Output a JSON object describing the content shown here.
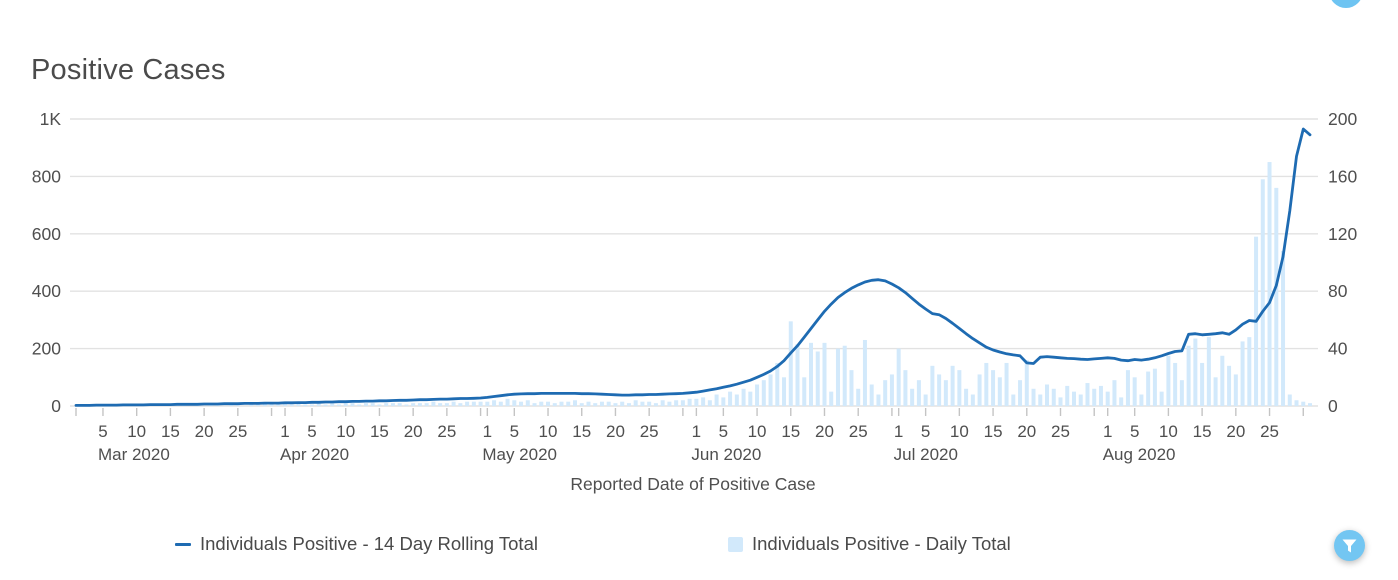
{
  "title": "Positive Cases",
  "filter_button": {
    "color": "#73c6f2",
    "icon": "filter-funnel"
  },
  "top_partial_button": {
    "color": "#6ec4f2"
  },
  "legend": [
    {
      "label": "Individuals Positive - 14 Day Rolling Total",
      "marker": "line"
    },
    {
      "label": "Individuals Positive - Daily Total",
      "marker": "square"
    }
  ],
  "chart_data": {
    "type": "line+bar",
    "title": "Positive Cases",
    "xlabel": "Reported Date of Positive Case",
    "start_date": "2020-03-01",
    "grid": true,
    "legend_position": "bottom",
    "months": [
      {
        "label": "Mar 2020",
        "days": 31,
        "tick_label_days": [
          5,
          10,
          15,
          20,
          25
        ]
      },
      {
        "label": "Apr 2020",
        "days": 30,
        "tick_label_days": [
          1,
          5,
          10,
          15,
          20,
          25
        ]
      },
      {
        "label": "May 2020",
        "days": 31,
        "tick_label_days": [
          1,
          5,
          10,
          15,
          20,
          25
        ]
      },
      {
        "label": "Jun 2020",
        "days": 30,
        "tick_label_days": [
          1,
          5,
          10,
          15,
          20,
          25
        ]
      },
      {
        "label": "Jul 2020",
        "days": 31,
        "tick_label_days": [
          1,
          5,
          10,
          15,
          20,
          25
        ]
      },
      {
        "label": "Aug 2020",
        "days": 31,
        "tick_label_days": [
          1,
          5,
          10,
          15,
          20,
          25
        ]
      }
    ],
    "left_axis": {
      "min": 0,
      "max": 1000,
      "tick_labels": [
        "0",
        "200",
        "400",
        "600",
        "800",
        "1K"
      ]
    },
    "right_axis": {
      "min": 0,
      "max": 200,
      "tick_labels": [
        "0",
        "40",
        "80",
        "120",
        "160",
        "200"
      ]
    },
    "colors": {
      "gridline": "#e2e2e2",
      "tick": "#c4c4c4",
      "axis_text": "#4f4f4f"
    },
    "series": [
      {
        "name": "Individuals Positive - 14 Day Rolling Total",
        "type": "line",
        "axis": "left",
        "color": "#1e6bb2",
        "values": [
          2,
          2,
          2,
          3,
          3,
          3,
          3,
          4,
          4,
          4,
          4,
          5,
          5,
          5,
          5,
          6,
          6,
          6,
          6,
          7,
          7,
          7,
          8,
          8,
          8,
          9,
          9,
          9,
          10,
          10,
          10,
          11,
          11,
          12,
          12,
          13,
          13,
          14,
          14,
          15,
          15,
          16,
          16,
          17,
          17,
          18,
          18,
          19,
          20,
          20,
          21,
          22,
          22,
          23,
          24,
          24,
          25,
          26,
          26,
          27,
          28,
          30,
          33,
          36,
          39,
          41,
          42,
          43,
          43,
          44,
          44,
          44,
          44,
          44,
          44,
          43,
          43,
          42,
          41,
          40,
          39,
          38,
          38,
          39,
          39,
          40,
          40,
          41,
          42,
          43,
          44,
          46,
          48,
          52,
          56,
          60,
          65,
          70,
          76,
          83,
          90,
          100,
          110,
          122,
          138,
          158,
          185,
          210,
          240,
          270,
          300,
          330,
          355,
          378,
          395,
          410,
          422,
          432,
          438,
          440,
          436,
          425,
          412,
          395,
          375,
          355,
          338,
          322,
          318,
          305,
          288,
          270,
          252,
          235,
          220,
          205,
          195,
          188,
          182,
          178,
          175,
          150,
          148,
          170,
          172,
          170,
          168,
          166,
          165,
          163,
          162,
          164,
          166,
          168,
          166,
          160,
          158,
          162,
          160,
          163,
          168,
          175,
          183,
          190,
          192,
          250,
          252,
          248,
          250,
          252,
          255,
          250,
          265,
          285,
          298,
          295,
          330,
          360,
          420,
          520,
          680,
          870,
          965,
          945
        ]
      },
      {
        "name": "Individuals Positive - Daily Total",
        "type": "bar",
        "axis": "right",
        "color": "#d2e9fb",
        "values": [
          0,
          0,
          0,
          0,
          1,
          0,
          0,
          1,
          0,
          0,
          1,
          0,
          1,
          0,
          0,
          1,
          1,
          0,
          1,
          0,
          1,
          1,
          0,
          1,
          1,
          0,
          1,
          1,
          1,
          1,
          1,
          1,
          1,
          2,
          1,
          1,
          2,
          1,
          2,
          1,
          2,
          2,
          1,
          2,
          2,
          1,
          2,
          2,
          2,
          1,
          2,
          2,
          2,
          3,
          2,
          2,
          3,
          2,
          3,
          3,
          3,
          3,
          4,
          3,
          5,
          4,
          3,
          4,
          2,
          3,
          3,
          2,
          3,
          3,
          4,
          2,
          3,
          2,
          3,
          3,
          2,
          3,
          2,
          4,
          3,
          3,
          2,
          4,
          3,
          4,
          4,
          5,
          5,
          6,
          4,
          8,
          6,
          10,
          8,
          12,
          10,
          15,
          18,
          22,
          30,
          20,
          59,
          43,
          20,
          44,
          38,
          44,
          10,
          40,
          42,
          25,
          12,
          46,
          15,
          8,
          18,
          22,
          40,
          25,
          12,
          18,
          8,
          28,
          22,
          18,
          28,
          25,
          12,
          8,
          22,
          30,
          25,
          20,
          30,
          8,
          18,
          32,
          12,
          8,
          15,
          12,
          6,
          14,
          10,
          8,
          16,
          12,
          14,
          10,
          18,
          6,
          25,
          20,
          8,
          24,
          26,
          10,
          35,
          30,
          18,
          42,
          47,
          30,
          48,
          20,
          35,
          28,
          22,
          45,
          48,
          118,
          158,
          170,
          152,
          108,
          8,
          4,
          3,
          2
        ]
      }
    ]
  }
}
